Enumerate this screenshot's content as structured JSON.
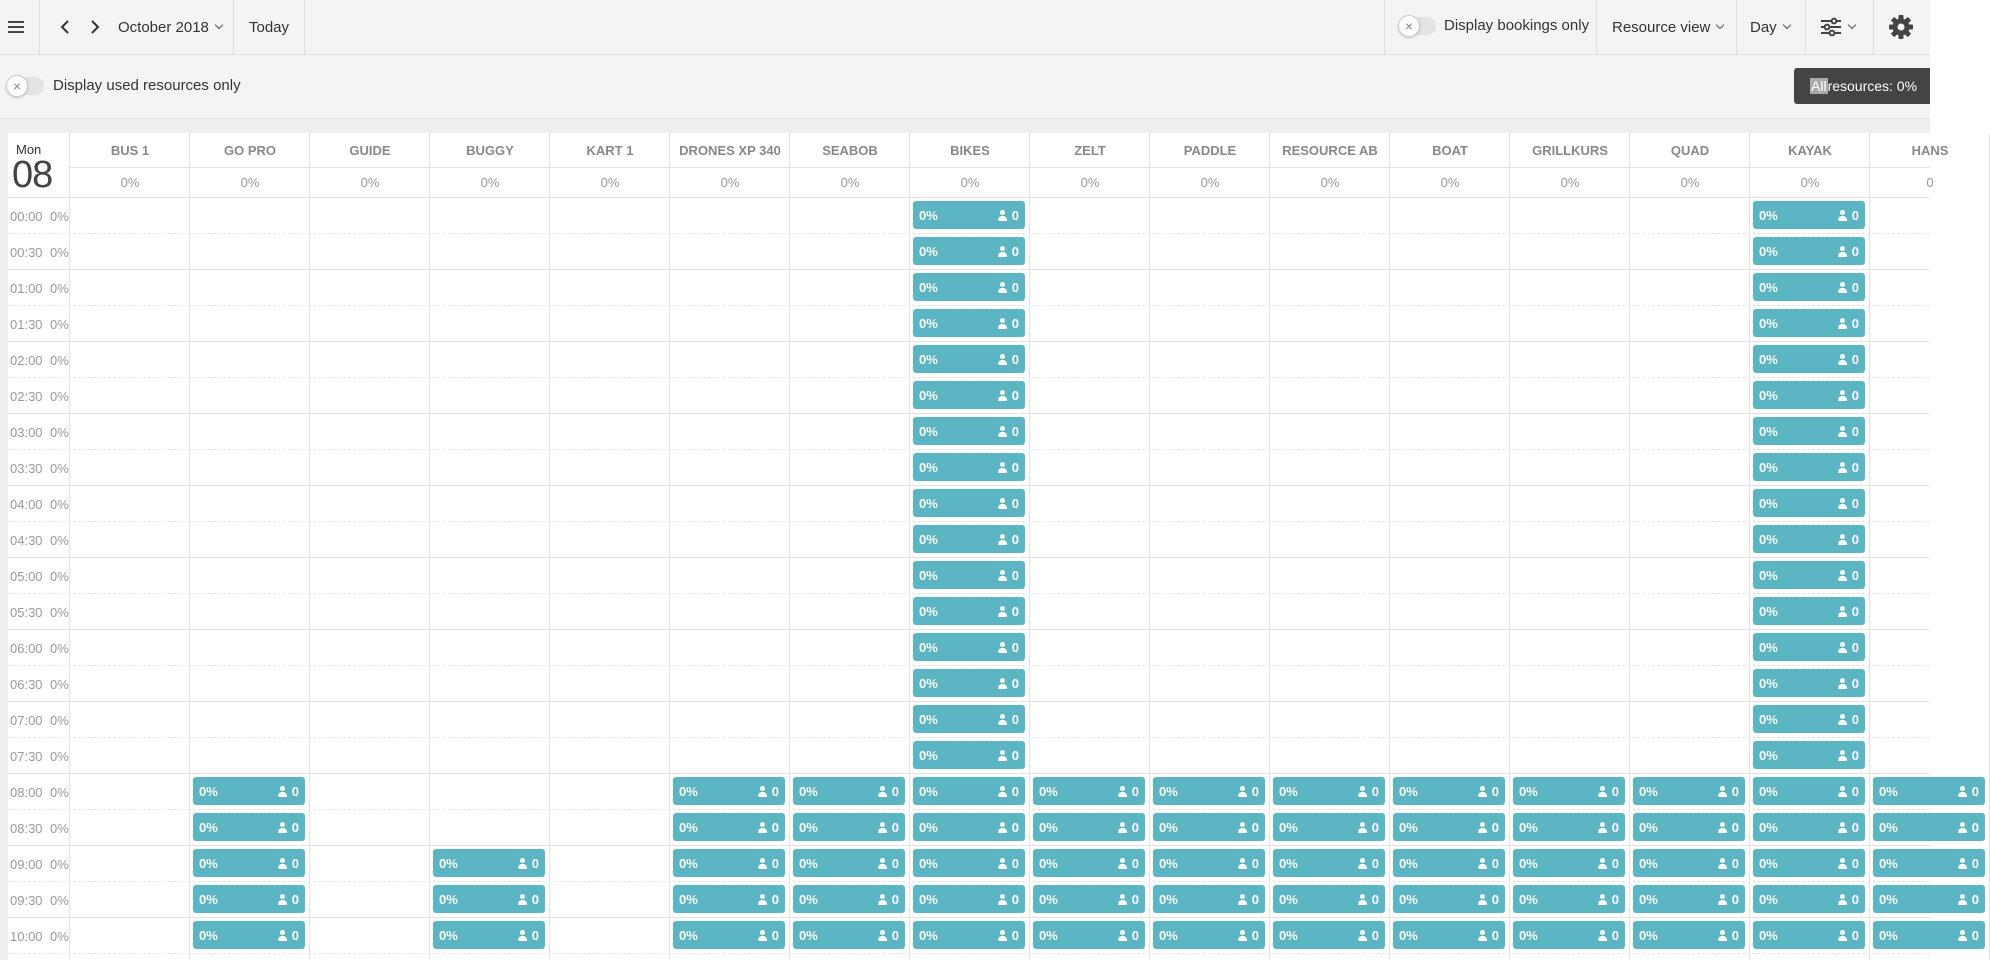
{
  "toolbar": {
    "month_label": "October 2018",
    "today_label": "Today",
    "display_bookings_label": "Display bookings only",
    "view_label": "Resource view",
    "period_label": "Day"
  },
  "subbar": {
    "used_resources_label": "Display used resources only",
    "all_resources_prefix": "All",
    "all_resources_suffix": " resources: 0%"
  },
  "day": {
    "name": "Mon",
    "number": "08"
  },
  "resources": [
    {
      "name": "BUS 1",
      "pct": "0%"
    },
    {
      "name": "GO PRO",
      "pct": "0%"
    },
    {
      "name": "GUIDE",
      "pct": "0%"
    },
    {
      "name": "BUGGY",
      "pct": "0%"
    },
    {
      "name": "KART 1",
      "pct": "0%"
    },
    {
      "name": "DRONES XP 340",
      "pct": "0%"
    },
    {
      "name": "SEABOB",
      "pct": "0%"
    },
    {
      "name": "BIKES",
      "pct": "0%"
    },
    {
      "name": "ZELT",
      "pct": "0%"
    },
    {
      "name": "PADDLE",
      "pct": "0%"
    },
    {
      "name": "RESOURCE AB",
      "pct": "0%"
    },
    {
      "name": "BOAT",
      "pct": "0%"
    },
    {
      "name": "GRILLKURS",
      "pct": "0%"
    },
    {
      "name": "QUAD",
      "pct": "0%"
    },
    {
      "name": "KAYAK",
      "pct": "0%"
    },
    {
      "name": "HANS",
      "pct": "0"
    }
  ],
  "times": [
    {
      "time": "00:00",
      "pct": "0%"
    },
    {
      "time": "00:30",
      "pct": "0%"
    },
    {
      "time": "01:00",
      "pct": "0%"
    },
    {
      "time": "01:30",
      "pct": "0%"
    },
    {
      "time": "02:00",
      "pct": "0%"
    },
    {
      "time": "02:30",
      "pct": "0%"
    },
    {
      "time": "03:00",
      "pct": "0%"
    },
    {
      "time": "03:30",
      "pct": "0%"
    },
    {
      "time": "04:00",
      "pct": "0%"
    },
    {
      "time": "04:30",
      "pct": "0%"
    },
    {
      "time": "05:00",
      "pct": "0%"
    },
    {
      "time": "05:30",
      "pct": "0%"
    },
    {
      "time": "06:00",
      "pct": "0%"
    },
    {
      "time": "06:30",
      "pct": "0%"
    },
    {
      "time": "07:00",
      "pct": "0%"
    },
    {
      "time": "07:30",
      "pct": "0%"
    },
    {
      "time": "08:00",
      "pct": "0%"
    },
    {
      "time": "08:30",
      "pct": "0%"
    },
    {
      "time": "09:00",
      "pct": "0%"
    },
    {
      "time": "09:30",
      "pct": "0%"
    },
    {
      "time": "10:00",
      "pct": "0%"
    }
  ],
  "slot": {
    "pct": "0%",
    "count": "0"
  },
  "availability": [
    {
      "rows": [
        0,
        1,
        2,
        3,
        4,
        5,
        6,
        7,
        8,
        9,
        10,
        11,
        12,
        13,
        14,
        15,
        16,
        17,
        18,
        19,
        20
      ],
      "cols": [
        7,
        14
      ]
    },
    {
      "rows": [
        16,
        17,
        18,
        19,
        20
      ],
      "cols": [
        1,
        5,
        6,
        8,
        9,
        10,
        11,
        12,
        13,
        15
      ]
    },
    {
      "rows": [
        18,
        19,
        20
      ],
      "cols": [
        3
      ]
    }
  ],
  "colors": {
    "slot": "#5bb5c2"
  }
}
